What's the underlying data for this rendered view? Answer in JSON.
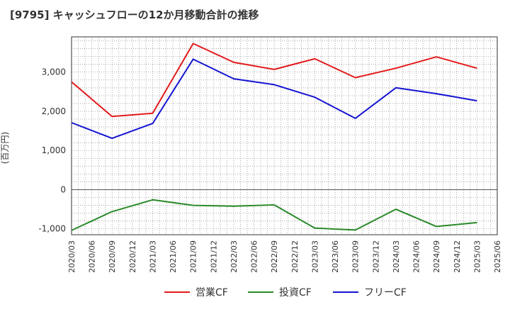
{
  "chart_data": {
    "type": "line",
    "title": "[9795]  キャッシュフローの12か月移動合計の推移",
    "ylabel": "(百万円)",
    "xlabel": "",
    "ylim": [
      -1150,
      3900
    ],
    "yticks": [
      -1000,
      0,
      1000,
      2000,
      3000
    ],
    "ytick_labels": [
      "-1,000",
      "0",
      "1,000",
      "2,000",
      "3,000"
    ],
    "x_ticks": [
      "2020/03",
      "2020/06",
      "2020/09",
      "2020/12",
      "2021/03",
      "2021/06",
      "2021/09",
      "2021/12",
      "2022/03",
      "2022/06",
      "2022/09",
      "2022/12",
      "2023/03",
      "2023/06",
      "2023/09",
      "2023/12",
      "2024/03",
      "2024/06",
      "2024/09",
      "2024/12",
      "2025/03",
      "2025/06"
    ],
    "series": [
      {
        "name": "営業CF",
        "color": "#e31a1c",
        "points": [
          [
            "2020/03",
            2750
          ],
          [
            "2020/09",
            1870
          ],
          [
            "2021/03",
            1950
          ],
          [
            "2021/09",
            3730
          ],
          [
            "2022/03",
            3250
          ],
          [
            "2022/09",
            3070
          ],
          [
            "2023/03",
            3340
          ],
          [
            "2023/09",
            2860
          ],
          [
            "2024/03",
            3100
          ],
          [
            "2024/09",
            3390
          ],
          [
            "2025/03",
            3100
          ]
        ]
      },
      {
        "name": "投資CF",
        "color": "#2a8a2a",
        "points": [
          [
            "2020/03",
            -1040
          ],
          [
            "2020/09",
            -560
          ],
          [
            "2021/03",
            -260
          ],
          [
            "2021/09",
            -400
          ],
          [
            "2022/03",
            -420
          ],
          [
            "2022/09",
            -390
          ],
          [
            "2023/03",
            -980
          ],
          [
            "2023/09",
            -1030
          ],
          [
            "2024/03",
            -500
          ],
          [
            "2024/09",
            -940
          ],
          [
            "2025/03",
            -840
          ]
        ]
      },
      {
        "name": "フリーCF",
        "color": "#1414d2",
        "points": [
          [
            "2020/03",
            1710
          ],
          [
            "2020/09",
            1310
          ],
          [
            "2021/03",
            1690
          ],
          [
            "2021/09",
            3330
          ],
          [
            "2022/03",
            2830
          ],
          [
            "2022/09",
            2680
          ],
          [
            "2023/03",
            2360
          ],
          [
            "2023/09",
            1820
          ],
          [
            "2024/03",
            2600
          ],
          [
            "2024/09",
            2450
          ],
          [
            "2025/03",
            2270
          ]
        ]
      }
    ],
    "grid": true,
    "legend_position": "bottom"
  }
}
